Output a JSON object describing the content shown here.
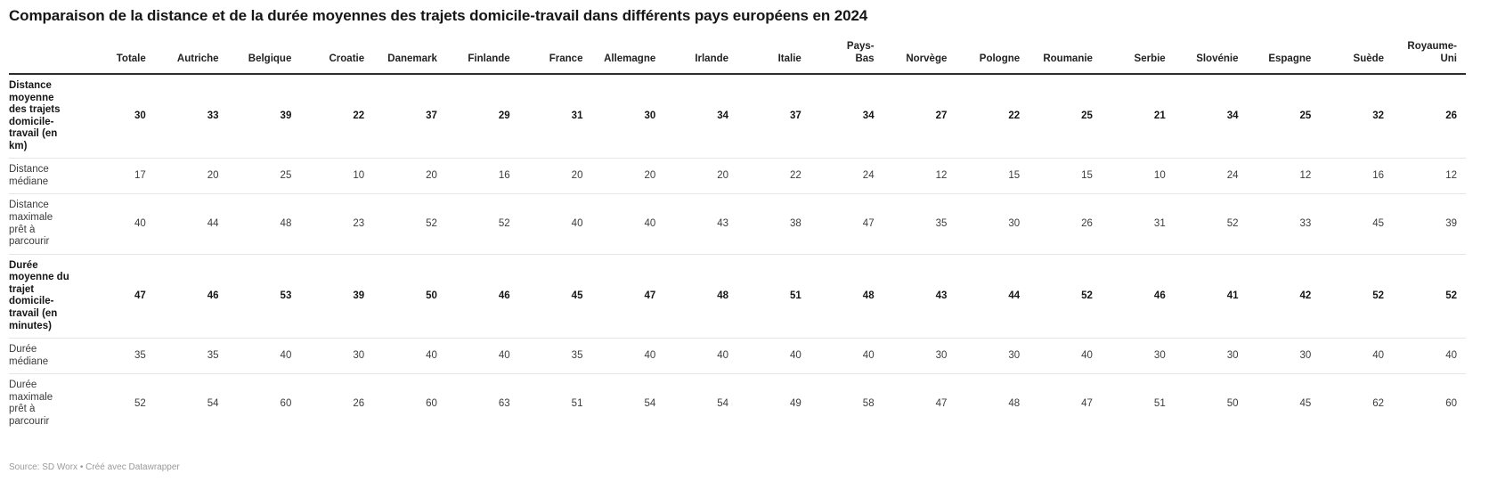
{
  "title": "Comparaison de la distance et de la durée moyennes des trajets domicile-travail dans différents pays européens en 2024",
  "source_note": "Source: SD Worx • Créé avec Datawrapper",
  "chart_data": {
    "type": "table",
    "legend_position": "none",
    "grid": "horizontal-row-separators",
    "categories": [
      "Totale",
      "Autriche",
      "Belgique",
      "Croatie",
      "Danemark",
      "Finlande",
      "France",
      "Allemagne",
      "Irlande",
      "Italie",
      "Pays-Bas",
      "Norvège",
      "Pologne",
      "Roumanie",
      "Serbie",
      "Slovénie",
      "Espagne",
      "Suède",
      "Royaume-Uni"
    ],
    "rows": [
      {
        "label": "Distance moyenne des trajets domicile-travail (en km)",
        "emphasis": true,
        "values": [
          30,
          33,
          39,
          22,
          37,
          29,
          31,
          30,
          34,
          37,
          34,
          27,
          22,
          25,
          21,
          34,
          25,
          32,
          26
        ]
      },
      {
        "label": "Distance médiane",
        "emphasis": false,
        "values": [
          17,
          20,
          25,
          10,
          20,
          16,
          20,
          20,
          20,
          22,
          24,
          12,
          15,
          15,
          10,
          24,
          12,
          16,
          12
        ]
      },
      {
        "label": "Distance maximale prêt à parcourir",
        "emphasis": false,
        "values": [
          40,
          44,
          48,
          23,
          52,
          52,
          40,
          40,
          43,
          38,
          47,
          35,
          30,
          26,
          31,
          52,
          33,
          45,
          39
        ]
      },
      {
        "label": "Durée moyenne du trajet domicile-travail (en minutes)",
        "emphasis": true,
        "values": [
          47,
          46,
          53,
          39,
          50,
          46,
          45,
          47,
          48,
          51,
          48,
          43,
          44,
          52,
          46,
          41,
          42,
          52,
          52
        ]
      },
      {
        "label": "Durée médiane",
        "emphasis": false,
        "values": [
          35,
          35,
          40,
          30,
          40,
          40,
          35,
          40,
          40,
          40,
          40,
          30,
          30,
          40,
          30,
          30,
          30,
          40,
          40
        ]
      },
      {
        "label": "Durée maximale prêt à parcourir",
        "emphasis": false,
        "values": [
          52,
          54,
          60,
          26,
          60,
          63,
          51,
          54,
          54,
          49,
          58,
          47,
          48,
          47,
          51,
          50,
          45,
          62,
          60
        ]
      }
    ]
  }
}
